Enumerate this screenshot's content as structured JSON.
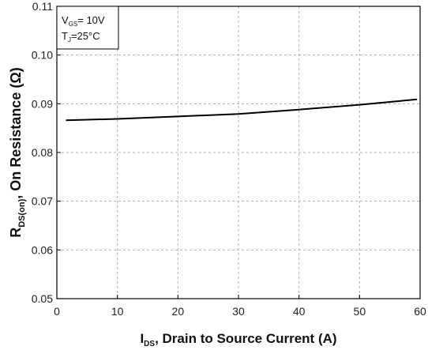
{
  "chart_data": {
    "type": "line",
    "xlim": [
      0,
      60
    ],
    "ylim": [
      0.05,
      0.11
    ],
    "x_ticks": [
      "0",
      "10",
      "20",
      "30",
      "40",
      "50",
      "60"
    ],
    "y_ticks": [
      "0.05",
      "0.06",
      "0.07",
      "0.08",
      "0.09",
      "0.10",
      "0.11"
    ],
    "grid": true,
    "xlabel": {
      "main": "I",
      "sub": "DS",
      "rest": ", Drain to Source Current (A)"
    },
    "ylabel": {
      "main": "R",
      "sub": "DS(on)",
      "rest": ", On Resistance (Ω)"
    },
    "annotation": {
      "line1": {
        "main": "V",
        "sub": "GS",
        "rest": "= 10V"
      },
      "line2": {
        "main": "T",
        "sub": "J",
        "rest": "=25°C"
      }
    },
    "series": [
      {
        "x": [
          1.5,
          10,
          20,
          30,
          40,
          50,
          59.5
        ],
        "y": [
          0.0866,
          0.0869,
          0.0874,
          0.0879,
          0.0888,
          0.0898,
          0.0909
        ]
      }
    ],
    "line_color": "#000000",
    "grid_color": "#b0b0b0"
  }
}
